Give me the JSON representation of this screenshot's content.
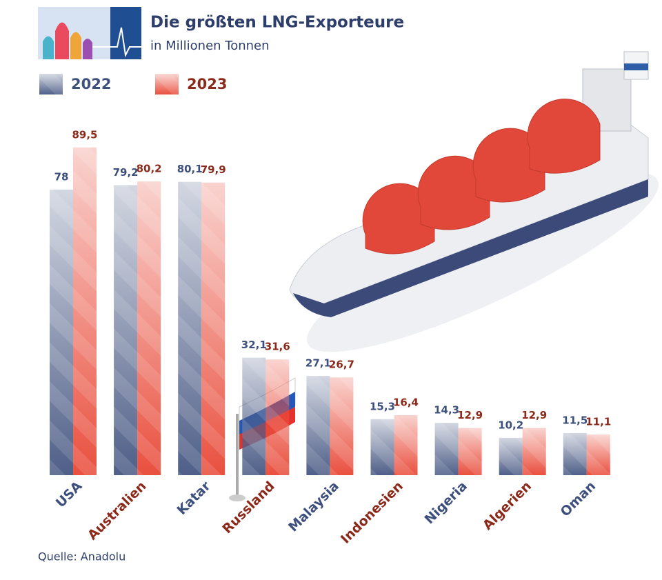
{
  "chart_data": {
    "type": "bar",
    "title": "Die größten LNG-Exporteure",
    "subtitle": "in Millionen Tonnen",
    "source": "Quelle: Anadolu",
    "categories": [
      "USA",
      "Australien",
      "Katar",
      "Russland",
      "Malaysia",
      "Indonesien",
      "Nigeria",
      "Algerien",
      "Oman"
    ],
    "series": [
      {
        "name": "2022",
        "color": "#4f5f88",
        "label_color": "#3d4f7c",
        "values": [
          78,
          79.2,
          80.1,
          32.1,
          27.1,
          15.3,
          14.3,
          10.2,
          11.5
        ],
        "value_labels": [
          "78",
          "79,2",
          "80,1",
          "32,1",
          "27,1",
          "15,3",
          "14,3",
          "10,2",
          "11,5"
        ]
      },
      {
        "name": "2023",
        "color": "#e9503f",
        "label_color": "#8b2a1a",
        "values": [
          89.5,
          80.2,
          79.9,
          31.6,
          26.7,
          16.4,
          12.9,
          12.9,
          11.1
        ],
        "value_labels": [
          "89,5",
          "80,2",
          "79,9",
          "31,6",
          "26,7",
          "16,4",
          "12,9",
          "12,9",
          "11,1"
        ]
      }
    ]
  }
}
